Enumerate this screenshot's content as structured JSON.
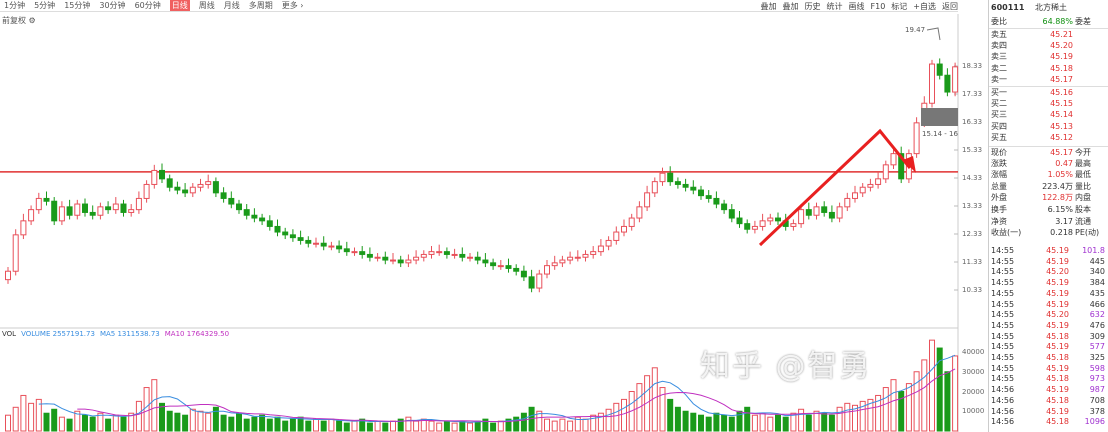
{
  "toolbar": {
    "periods": [
      "1分钟",
      "5分钟",
      "15分钟",
      "30分钟",
      "60分钟",
      "日线",
      "周线",
      "月线",
      "多周期",
      "更多 ›"
    ],
    "selected": "日线",
    "sub": "前复权 ⚙",
    "right": [
      "叠加",
      "叠加",
      "历史",
      "统计",
      "画线",
      "F10",
      "标记",
      "+自选",
      "返回"
    ]
  },
  "stock": {
    "code": "600111",
    "name": "北方稀土"
  },
  "panel": {
    "rows": [
      {
        "l": "委比",
        "v": "64.88%",
        "r": "委差",
        "vc": "grn"
      },
      {
        "l": "卖五",
        "v": "45.21",
        "vc": "red"
      },
      {
        "l": "卖四",
        "v": "45.20",
        "vc": "red"
      },
      {
        "l": "卖三",
        "v": "45.19",
        "vc": "red"
      },
      {
        "l": "卖二",
        "v": "45.18",
        "vc": "red"
      },
      {
        "l": "卖一",
        "v": "45.17",
        "vc": "red"
      },
      {
        "l": "买一",
        "v": "45.16",
        "vc": "red"
      },
      {
        "l": "买二",
        "v": "45.15",
        "vc": "red"
      },
      {
        "l": "买三",
        "v": "45.14",
        "vc": "red"
      },
      {
        "l": "买四",
        "v": "45.13",
        "vc": "red"
      },
      {
        "l": "买五",
        "v": "45.12",
        "vc": "red"
      },
      {
        "l": "现价",
        "v": "45.17",
        "r": "今开",
        "vc": "red"
      },
      {
        "l": "涨跌",
        "v": "0.47",
        "r": "最高",
        "vc": "red"
      },
      {
        "l": "涨幅",
        "v": "1.05%",
        "r": "最低",
        "vc": "red"
      },
      {
        "l": "总量",
        "v": "223.4万",
        "r": "量比",
        "vc": ""
      },
      {
        "l": "外盘",
        "v": "122.8万",
        "r": "内盘",
        "vc": "red"
      },
      {
        "l": "换手",
        "v": "6.15%",
        "r": "股本",
        "vc": ""
      },
      {
        "l": "净资",
        "v": "3.17",
        "r": "流通",
        "vc": ""
      },
      {
        "l": "收益(一)",
        "v": "0.218",
        "r": "PE(动)",
        "vc": ""
      }
    ],
    "trades": [
      {
        "t": "14:55",
        "p": "45.19",
        "q": "101.8",
        "qc": "pur"
      },
      {
        "t": "14:55",
        "p": "45.19",
        "q": "445"
      },
      {
        "t": "14:55",
        "p": "45.20",
        "q": "340"
      },
      {
        "t": "14:55",
        "p": "45.19",
        "q": "384"
      },
      {
        "t": "14:55",
        "p": "45.19",
        "q": "435"
      },
      {
        "t": "14:55",
        "p": "45.19",
        "q": "466"
      },
      {
        "t": "14:55",
        "p": "45.20",
        "q": "632",
        "qc": "pur"
      },
      {
        "t": "14:55",
        "p": "45.19",
        "q": "476"
      },
      {
        "t": "14:55",
        "p": "45.18",
        "q": "309"
      },
      {
        "t": "14:55",
        "p": "45.19",
        "q": "577",
        "qc": "pur"
      },
      {
        "t": "14:55",
        "p": "45.18",
        "q": "325"
      },
      {
        "t": "14:55",
        "p": "45.19",
        "q": "598",
        "qc": "pur"
      },
      {
        "t": "14:55",
        "p": "45.18",
        "q": "973",
        "qc": "pur"
      },
      {
        "t": "14:56",
        "p": "45.19",
        "q": "987",
        "qc": "pur"
      },
      {
        "t": "14:56",
        "p": "45.18",
        "q": "708"
      },
      {
        "t": "14:56",
        "p": "45.19",
        "q": "378"
      },
      {
        "t": "14:56",
        "p": "45.18",
        "q": "1096",
        "qc": "pur"
      }
    ]
  },
  "chart_data": [
    {
      "type": "candlestick",
      "title": "",
      "y_ticks": [
        18.33,
        17.33,
        16.33,
        15.33,
        14.33,
        13.33,
        12.33,
        11.33,
        10.33
      ],
      "ylim": [
        10.0,
        19.8
      ],
      "resistance_line": 14.55,
      "high_label": "19.47",
      "range_label": "15.14 - 16",
      "closes": [
        11.0,
        12.3,
        12.8,
        13.2,
        13.6,
        13.5,
        12.8,
        13.3,
        13.0,
        13.4,
        13.1,
        13.0,
        13.3,
        13.2,
        13.4,
        13.1,
        13.2,
        13.6,
        14.1,
        14.6,
        14.3,
        14.0,
        13.9,
        13.8,
        14.0,
        14.1,
        14.2,
        13.8,
        13.6,
        13.4,
        13.2,
        13.0,
        12.9,
        12.8,
        12.6,
        12.4,
        12.3,
        12.2,
        12.1,
        12.0,
        12.0,
        11.9,
        11.9,
        11.8,
        11.7,
        11.7,
        11.6,
        11.5,
        11.5,
        11.4,
        11.4,
        11.3,
        11.4,
        11.5,
        11.6,
        11.7,
        11.7,
        11.6,
        11.6,
        11.5,
        11.5,
        11.4,
        11.3,
        11.2,
        11.2,
        11.1,
        11.0,
        10.8,
        10.4,
        10.9,
        11.2,
        11.3,
        11.4,
        11.5,
        11.5,
        11.6,
        11.7,
        11.9,
        12.1,
        12.4,
        12.6,
        12.9,
        13.3,
        13.8,
        14.2,
        14.5,
        14.2,
        14.1,
        14.0,
        13.9,
        13.7,
        13.6,
        13.4,
        13.2,
        12.9,
        12.7,
        12.5,
        12.6,
        12.8,
        12.9,
        12.8,
        12.6,
        12.7,
        13.2,
        13.0,
        13.3,
        13.1,
        12.9,
        13.3,
        13.6,
        13.8,
        14.0,
        14.1,
        14.3,
        14.8,
        15.2,
        14.3,
        15.2,
        16.3,
        17.0,
        18.4,
        18.0,
        17.4,
        18.3
      ],
      "colors": {
        "up": "#e8505a",
        "down": "#1a9a1a",
        "line": "#e03030",
        "arrow": "#e82020"
      }
    },
    {
      "type": "bar",
      "title": "VOL",
      "legend": [
        "VOLUME 2557191.73",
        "MA5 1311538.73",
        "MA10 1764329.50"
      ],
      "y_ticks": [
        40000,
        30000,
        20000,
        10000
      ],
      "ylim": [
        0,
        50000
      ],
      "values": [
        8000,
        12000,
        18000,
        14000,
        16000,
        9000,
        11000,
        7000,
        6000,
        10000,
        8000,
        7000,
        9000,
        6000,
        8000,
        7000,
        9000,
        15000,
        22000,
        26000,
        14000,
        10000,
        9000,
        8000,
        11000,
        10000,
        9000,
        12000,
        8000,
        7000,
        9000,
        6000,
        7000,
        8000,
        6000,
        7000,
        5000,
        6000,
        7000,
        5000,
        6000,
        5000,
        6000,
        5000,
        4000,
        5000,
        6000,
        4000,
        5000,
        4000,
        5000,
        6000,
        7000,
        5000,
        6000,
        5000,
        4000,
        5000,
        4000,
        5000,
        4000,
        5000,
        6000,
        4000,
        5000,
        6000,
        7000,
        9000,
        12000,
        10000,
        6000,
        5000,
        6000,
        5000,
        7000,
        6000,
        8000,
        9000,
        11000,
        14000,
        16000,
        20000,
        24000,
        28000,
        32000,
        22000,
        16000,
        12000,
        10000,
        9000,
        8000,
        7000,
        9000,
        8000,
        7000,
        10000,
        12000,
        8000,
        9000,
        7000,
        8000,
        7000,
        9000,
        11000,
        8000,
        10000,
        9000,
        8000,
        12000,
        14000,
        13000,
        15000,
        16000,
        18000,
        22000,
        26000,
        20000,
        24000,
        30000,
        36000,
        46000,
        42000,
        30000,
        38000
      ],
      "colors": {
        "ma5": "#3a8ee0",
        "ma10": "#c030c0"
      }
    }
  ],
  "watermark": "知乎 @智勇"
}
